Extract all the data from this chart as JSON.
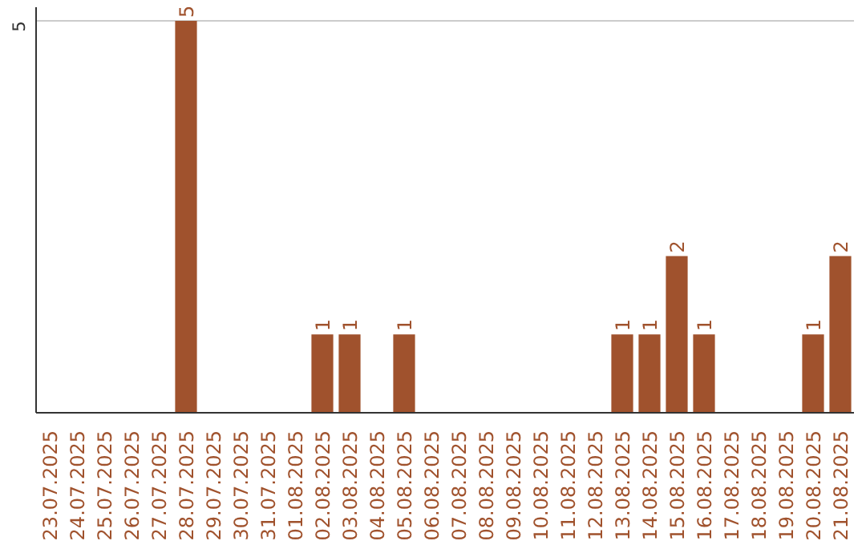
{
  "chart_data": {
    "type": "bar",
    "categories": [
      "23.07.2025",
      "24.07.2025",
      "25.07.2025",
      "26.07.2025",
      "27.07.2025",
      "28.07.2025",
      "29.07.2025",
      "30.07.2025",
      "31.07.2025",
      "01.08.2025",
      "02.08.2025",
      "03.08.2025",
      "04.08.2025",
      "05.08.2025",
      "06.08.2025",
      "07.08.2025",
      "08.08.2025",
      "09.08.2025",
      "10.08.2025",
      "11.08.2025",
      "12.08.2025",
      "13.08.2025",
      "14.08.2025",
      "15.08.2025",
      "16.08.2025",
      "17.08.2025",
      "18.08.2025",
      "19.08.2025",
      "20.08.2025",
      "21.08.2025"
    ],
    "values": [
      0,
      0,
      0,
      0,
      0,
      5,
      0,
      0,
      0,
      0,
      1,
      1,
      0,
      1,
      0,
      0,
      0,
      0,
      0,
      0,
      0,
      1,
      1,
      2,
      1,
      0,
      0,
      0,
      1,
      2
    ],
    "value_labels": [
      null,
      null,
      null,
      null,
      null,
      "5",
      null,
      null,
      null,
      null,
      "1",
      "1",
      null,
      "1",
      null,
      null,
      null,
      null,
      null,
      null,
      null,
      "1",
      "1",
      "2",
      "1",
      null,
      null,
      null,
      "1",
      "2"
    ],
    "color": "#a0522d",
    "ref_lines": [
      {
        "axis": "y",
        "value": 5,
        "label": "5",
        "color": "#cccccc"
      }
    ]
  }
}
